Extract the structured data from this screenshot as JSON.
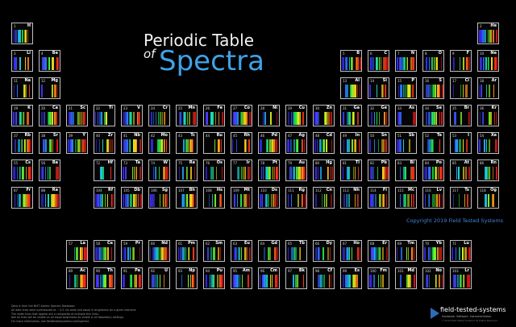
{
  "title_line1": "Periodic Table",
  "title_line2": "of",
  "title_line3": "Spectra",
  "copyright": "Copyright 2019 Field Tested Systems",
  "notes": [
    "Data is from the NIST Atomic Spectra Database.",
    "All data lines were synthesized at ~ 0.5 nm wide and equal in brightness for a given element.",
    "The wider lines that appear are a composite of multiple thin lines.",
    "Not all lines will be visible on all equal brightness as visible in all laboratory settings.",
    "For more information, see fieldtestedsystems.com/spectra"
  ],
  "brand": {
    "name": "field-tested-systems",
    "tagline": "Hardware. Software. Instrumentation.",
    "small": "© 2019 Field Tested Systems All Rights Reserved"
  },
  "elements": [
    {
      "z": 1,
      "s": "H",
      "c": 1,
      "r": 1
    },
    {
      "z": 2,
      "s": "He",
      "c": 18,
      "r": 1
    },
    {
      "z": 3,
      "s": "Li",
      "c": 1,
      "r": 2
    },
    {
      "z": 4,
      "s": "Be",
      "c": 2,
      "r": 2
    },
    {
      "z": 5,
      "s": "B",
      "c": 13,
      "r": 2
    },
    {
      "z": 6,
      "s": "C",
      "c": 14,
      "r": 2
    },
    {
      "z": 7,
      "s": "N",
      "c": 15,
      "r": 2
    },
    {
      "z": 8,
      "s": "O",
      "c": 16,
      "r": 2
    },
    {
      "z": 9,
      "s": "F",
      "c": 17,
      "r": 2
    },
    {
      "z": 10,
      "s": "Ne",
      "c": 18,
      "r": 2
    },
    {
      "z": 11,
      "s": "Na",
      "c": 1,
      "r": 3
    },
    {
      "z": 12,
      "s": "Mg",
      "c": 2,
      "r": 3
    },
    {
      "z": 13,
      "s": "Al",
      "c": 13,
      "r": 3
    },
    {
      "z": 14,
      "s": "Si",
      "c": 14,
      "r": 3
    },
    {
      "z": 15,
      "s": "P",
      "c": 15,
      "r": 3
    },
    {
      "z": 16,
      "s": "S",
      "c": 16,
      "r": 3
    },
    {
      "z": 17,
      "s": "Cl",
      "c": 17,
      "r": 3
    },
    {
      "z": 18,
      "s": "Ar",
      "c": 18,
      "r": 3
    },
    {
      "z": 19,
      "s": "K",
      "c": 1,
      "r": 4
    },
    {
      "z": 20,
      "s": "Ca",
      "c": 2,
      "r": 4
    },
    {
      "z": 21,
      "s": "Sc",
      "c": 3,
      "r": 4
    },
    {
      "z": 22,
      "s": "Ti",
      "c": 4,
      "r": 4
    },
    {
      "z": 23,
      "s": "V",
      "c": 5,
      "r": 4
    },
    {
      "z": 24,
      "s": "Cr",
      "c": 6,
      "r": 4
    },
    {
      "z": 25,
      "s": "Mn",
      "c": 7,
      "r": 4
    },
    {
      "z": 26,
      "s": "Fe",
      "c": 8,
      "r": 4
    },
    {
      "z": 27,
      "s": "Co",
      "c": 9,
      "r": 4
    },
    {
      "z": 28,
      "s": "Ni",
      "c": 10,
      "r": 4
    },
    {
      "z": 29,
      "s": "Cu",
      "c": 11,
      "r": 4
    },
    {
      "z": 30,
      "s": "Zn",
      "c": 12,
      "r": 4
    },
    {
      "z": 31,
      "s": "Ga",
      "c": 13,
      "r": 4
    },
    {
      "z": 32,
      "s": "Ge",
      "c": 14,
      "r": 4
    },
    {
      "z": 33,
      "s": "As",
      "c": 15,
      "r": 4
    },
    {
      "z": 34,
      "s": "Se",
      "c": 16,
      "r": 4
    },
    {
      "z": 35,
      "s": "Br",
      "c": 17,
      "r": 4
    },
    {
      "z": 36,
      "s": "Kr",
      "c": 18,
      "r": 4
    },
    {
      "z": 37,
      "s": "Rb",
      "c": 1,
      "r": 5
    },
    {
      "z": 38,
      "s": "Sr",
      "c": 2,
      "r": 5
    },
    {
      "z": 39,
      "s": "Y",
      "c": 3,
      "r": 5
    },
    {
      "z": 40,
      "s": "Zr",
      "c": 4,
      "r": 5
    },
    {
      "z": 41,
      "s": "Nb",
      "c": 5,
      "r": 5
    },
    {
      "z": 42,
      "s": "Mo",
      "c": 6,
      "r": 5
    },
    {
      "z": 43,
      "s": "Tc",
      "c": 7,
      "r": 5
    },
    {
      "z": 44,
      "s": "Ru",
      "c": 8,
      "r": 5
    },
    {
      "z": 45,
      "s": "Rh",
      "c": 9,
      "r": 5
    },
    {
      "z": 46,
      "s": "Pd",
      "c": 10,
      "r": 5
    },
    {
      "z": 47,
      "s": "Ag",
      "c": 11,
      "r": 5
    },
    {
      "z": 48,
      "s": "Cd",
      "c": 12,
      "r": 5
    },
    {
      "z": 49,
      "s": "In",
      "c": 13,
      "r": 5
    },
    {
      "z": 50,
      "s": "Sn",
      "c": 14,
      "r": 5
    },
    {
      "z": 51,
      "s": "Sb",
      "c": 15,
      "r": 5
    },
    {
      "z": 52,
      "s": "Te",
      "c": 16,
      "r": 5
    },
    {
      "z": 53,
      "s": "I",
      "c": 17,
      "r": 5
    },
    {
      "z": 54,
      "s": "Xe",
      "c": 18,
      "r": 5
    },
    {
      "z": 55,
      "s": "Cs",
      "c": 1,
      "r": 6
    },
    {
      "z": 56,
      "s": "Ba",
      "c": 2,
      "r": 6
    },
    {
      "z": 72,
      "s": "Hf",
      "c": 4,
      "r": 6
    },
    {
      "z": 73,
      "s": "Ta",
      "c": 5,
      "r": 6
    },
    {
      "z": 74,
      "s": "W",
      "c": 6,
      "r": 6
    },
    {
      "z": 75,
      "s": "Re",
      "c": 7,
      "r": 6
    },
    {
      "z": 76,
      "s": "Os",
      "c": 8,
      "r": 6
    },
    {
      "z": 77,
      "s": "Ir",
      "c": 9,
      "r": 6
    },
    {
      "z": 78,
      "s": "Pt",
      "c": 10,
      "r": 6
    },
    {
      "z": 79,
      "s": "Au",
      "c": 11,
      "r": 6
    },
    {
      "z": 80,
      "s": "Hg",
      "c": 12,
      "r": 6
    },
    {
      "z": 81,
      "s": "Tl",
      "c": 13,
      "r": 6
    },
    {
      "z": 82,
      "s": "Pb",
      "c": 14,
      "r": 6
    },
    {
      "z": 83,
      "s": "Bi",
      "c": 15,
      "r": 6
    },
    {
      "z": 84,
      "s": "Po",
      "c": 16,
      "r": 6
    },
    {
      "z": 85,
      "s": "At",
      "c": 17,
      "r": 6
    },
    {
      "z": 86,
      "s": "Rn",
      "c": 18,
      "r": 6
    },
    {
      "z": 87,
      "s": "Fr",
      "c": 1,
      "r": 7
    },
    {
      "z": 88,
      "s": "Ra",
      "c": 2,
      "r": 7
    },
    {
      "z": 104,
      "s": "Rf",
      "c": 4,
      "r": 7
    },
    {
      "z": 105,
      "s": "Db",
      "c": 5,
      "r": 7
    },
    {
      "z": 106,
      "s": "Sg",
      "c": 6,
      "r": 7
    },
    {
      "z": 107,
      "s": "Bh",
      "c": 7,
      "r": 7
    },
    {
      "z": 108,
      "s": "Hs",
      "c": 8,
      "r": 7
    },
    {
      "z": 109,
      "s": "Mt",
      "c": 9,
      "r": 7
    },
    {
      "z": 110,
      "s": "Ds",
      "c": 10,
      "r": 7
    },
    {
      "z": 111,
      "s": "Rg",
      "c": 11,
      "r": 7
    },
    {
      "z": 112,
      "s": "Cn",
      "c": 12,
      "r": 7
    },
    {
      "z": 113,
      "s": "Nh",
      "c": 13,
      "r": 7
    },
    {
      "z": 114,
      "s": "Fl",
      "c": 14,
      "r": 7
    },
    {
      "z": 115,
      "s": "Mc",
      "c": 15,
      "r": 7
    },
    {
      "z": 116,
      "s": "Lv",
      "c": 16,
      "r": 7
    },
    {
      "z": 117,
      "s": "Ts",
      "c": 17,
      "r": 7
    },
    {
      "z": 118,
      "s": "Og",
      "c": 18,
      "r": 7
    },
    {
      "z": 57,
      "s": "La",
      "c": 3,
      "r": 9
    },
    {
      "z": 58,
      "s": "Ce",
      "c": 4,
      "r": 9
    },
    {
      "z": 59,
      "s": "Pr",
      "c": 5,
      "r": 9
    },
    {
      "z": 60,
      "s": "Nd",
      "c": 6,
      "r": 9
    },
    {
      "z": 61,
      "s": "Pm",
      "c": 7,
      "r": 9
    },
    {
      "z": 62,
      "s": "Sm",
      "c": 8,
      "r": 9
    },
    {
      "z": 63,
      "s": "Eu",
      "c": 9,
      "r": 9
    },
    {
      "z": 64,
      "s": "Gd",
      "c": 10,
      "r": 9
    },
    {
      "z": 65,
      "s": "Tb",
      "c": 11,
      "r": 9
    },
    {
      "z": 66,
      "s": "Dy",
      "c": 12,
      "r": 9
    },
    {
      "z": 67,
      "s": "Ho",
      "c": 13,
      "r": 9
    },
    {
      "z": 68,
      "s": "Er",
      "c": 14,
      "r": 9
    },
    {
      "z": 69,
      "s": "Tm",
      "c": 15,
      "r": 9
    },
    {
      "z": 70,
      "s": "Yb",
      "c": 16,
      "r": 9
    },
    {
      "z": 71,
      "s": "Lu",
      "c": 17,
      "r": 9
    },
    {
      "z": 89,
      "s": "Ac",
      "c": 3,
      "r": 10
    },
    {
      "z": 90,
      "s": "Th",
      "c": 4,
      "r": 10
    },
    {
      "z": 91,
      "s": "Pa",
      "c": 5,
      "r": 10
    },
    {
      "z": 92,
      "s": "U",
      "c": 6,
      "r": 10
    },
    {
      "z": 93,
      "s": "Np",
      "c": 7,
      "r": 10
    },
    {
      "z": 94,
      "s": "Pu",
      "c": 8,
      "r": 10
    },
    {
      "z": 95,
      "s": "Am",
      "c": 9,
      "r": 10
    },
    {
      "z": 96,
      "s": "Cm",
      "c": 10,
      "r": 10
    },
    {
      "z": 97,
      "s": "Bk",
      "c": 11,
      "r": 10
    },
    {
      "z": 98,
      "s": "Cf",
      "c": 12,
      "r": 10
    },
    {
      "z": 99,
      "s": "Es",
      "c": 13,
      "r": 10
    },
    {
      "z": 100,
      "s": "Fm",
      "c": 14,
      "r": 10
    },
    {
      "z": 101,
      "s": "Md",
      "c": 15,
      "r": 10
    },
    {
      "z": 102,
      "s": "No",
      "c": 16,
      "r": 10
    },
    {
      "z": 103,
      "s": "Lr",
      "c": 17,
      "r": 10
    }
  ],
  "spectrum_colors": [
    "#3a2cff",
    "#4a40ff",
    "#2d6bff",
    "#1fa6ff",
    "#19d8c8",
    "#22e04a",
    "#7ef02a",
    "#d8f01e",
    "#ffd21a",
    "#ff8a1a",
    "#ff3a1a",
    "#e0141a"
  ]
}
